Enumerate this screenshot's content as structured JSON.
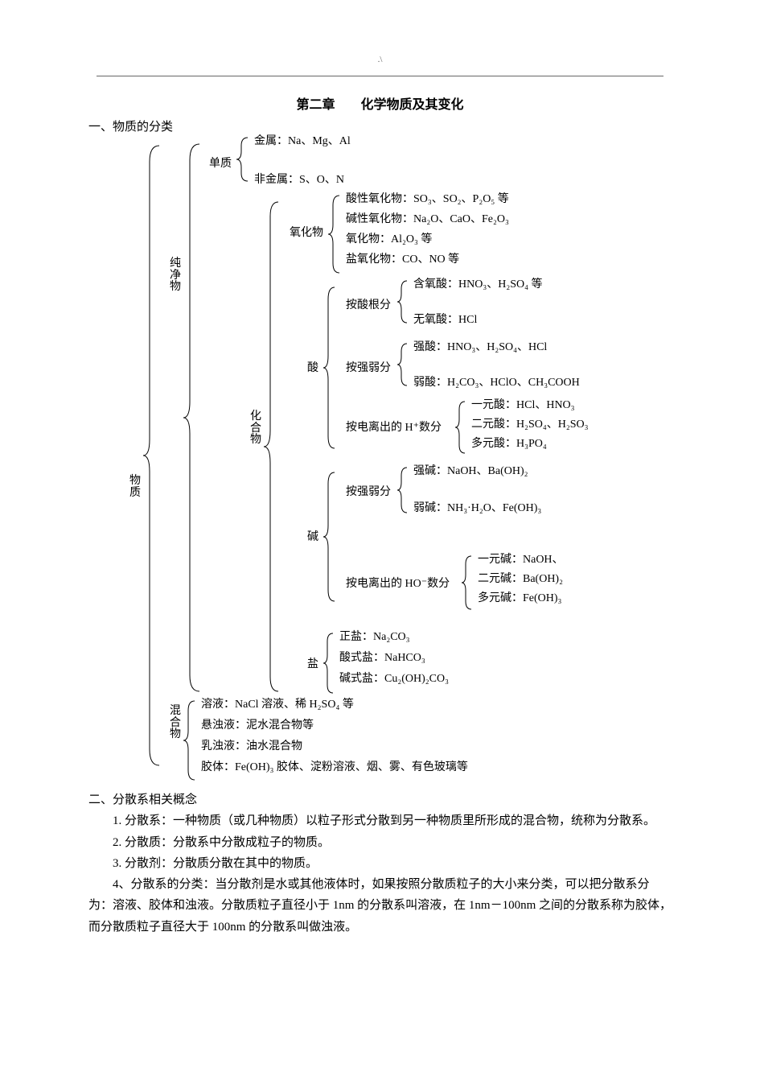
{
  "top_mark": ".\\",
  "chapter_title": "第二章　　化学物质及其变化",
  "section1": "一、物质的分类",
  "root": "物\n质",
  "pure": "纯\n净\n物",
  "mixture": "混\n合\n物",
  "compound": "化\n合\n物",
  "elementary": "单质",
  "metal": "金属：Na、Mg、Al",
  "nonmetal": "非金属：S、O、N",
  "oxide_label": "氧化物",
  "oxide_acidic": "酸性氧化物：SO₃、SO₂、P₂O₅ 等",
  "oxide_basic": "碱性氧化物：Na₂O、CaO、Fe₂O₃",
  "oxide_amphoteric": "氧化物：Al₂O₃ 等",
  "oxide_nonsalt": "盐氧化物：CO、NO 等",
  "acid_label": "酸",
  "acid_by_root": "按酸根分",
  "acid_oxy": "含氧酸：HNO₃、H₂SO₄ 等",
  "acid_nonoxy": "无氧酸：HCl",
  "acid_by_strength": "按强弱分",
  "acid_strong": "强酸：HNO₃、H₂SO₄、HCl",
  "acid_weak": "弱酸：H₂CO₃、HClO、CH₃COOH",
  "acid_by_h": "按电离出的 H⁺数分",
  "acid_mono": "一元酸：HCl、HNO₃",
  "acid_di": "二元酸：H₂SO₄、H₂SO₃",
  "acid_poly": "多元酸：H₃PO₄",
  "base_label": "碱",
  "base_by_strength": "按强弱分",
  "base_strong": "强碱：NaOH、Ba(OH)₂",
  "base_weak": "弱碱：NH₃·H₂O、Fe(OH)₃",
  "base_by_oh": "按电离出的 HO⁻数分",
  "base_mono": "一元碱：NaOH、",
  "base_di": "二元碱：Ba(OH)₂",
  "base_poly": "多元碱：Fe(OH)₃",
  "salt_label": "盐",
  "salt_normal": "正盐：Na₂CO₃",
  "salt_acid": "酸式盐：NaHCO₃",
  "salt_basic": "碱式盐：Cu₂(OH)₂CO₃",
  "mix_solution": "溶液：NaCl 溶液、稀 H₂SO₄ 等",
  "mix_suspension": "悬浊液：泥水混合物等",
  "mix_emulsion": "乳浊液：油水混合物",
  "mix_colloid": "胶体：Fe(OH)₃ 胶体、淀粉溶液、烟、雾、有色玻璃等",
  "section2": "二、分散系相关概念",
  "p1": "1. 分散系：一种物质（或几种物质）以粒子形式分散到另一种物质里所形成的混合物，统称为分散系。",
  "p2": "2. 分散质：分散系中分散成粒子的物质。",
  "p3": "3. 分散剂：分散质分散在其中的物质。",
  "p4": "4、分散系的分类：当分散剂是水或其他液体时，如果按照分散质粒子的大小来分类，可以把分散系分为：溶液、胶体和浊液。分散质粒子直径小于 1nm 的分散系叫溶液，在 1nm－100nm 之间的分散系称为胶体，而分散质粒子直径大于 100nm 的分散系叫做浊液。"
}
